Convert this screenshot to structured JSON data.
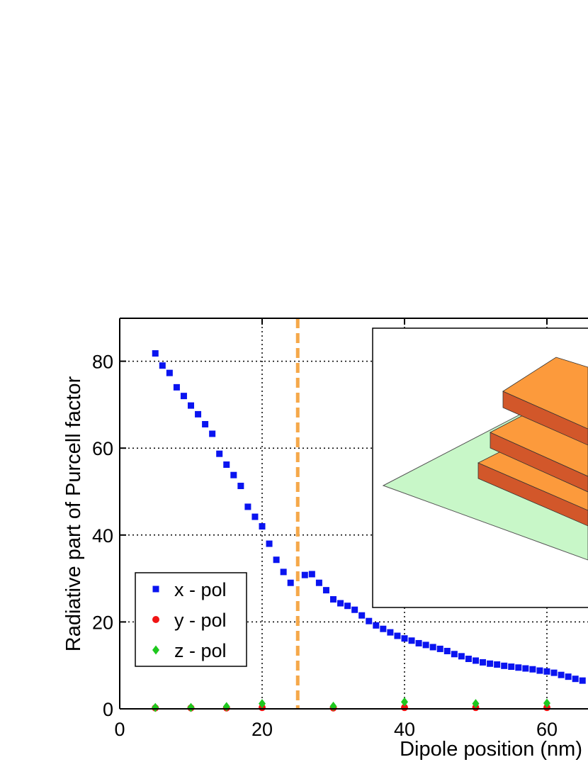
{
  "chart_data": {
    "type": "scatter",
    "xlabel": "Dipole position (nm)",
    "ylabel": "Radiative part of Purcell factor",
    "xlim": [
      0,
      65.5
    ],
    "ylim": [
      0,
      90
    ],
    "x_ticks": [
      0,
      20,
      40,
      60
    ],
    "y_ticks": [
      0,
      20,
      40,
      60,
      80
    ],
    "grid": true,
    "grid_style": "dotted",
    "legend_position": "bottom-left",
    "vertical_marker": {
      "x": 25,
      "color": "#f5a84a",
      "style": "dashed"
    },
    "series": [
      {
        "name": "x - pol",
        "color": "#0a14f0",
        "marker": "square",
        "x": [
          5,
          6,
          7,
          8,
          9,
          10,
          11,
          12,
          13,
          14,
          15,
          16,
          17,
          18,
          19,
          20,
          21,
          22,
          23,
          24,
          26,
          27,
          28,
          29,
          30,
          31,
          32,
          33,
          34,
          35,
          36,
          37,
          38,
          39,
          40,
          41,
          42,
          43,
          44,
          45,
          46,
          47,
          48,
          49,
          50,
          51,
          52,
          53,
          54,
          55,
          56,
          57,
          58,
          59,
          60,
          61,
          62,
          63,
          64,
          65
        ],
        "y": [
          81.8,
          79,
          77.3,
          74,
          72,
          69.8,
          67.8,
          65.5,
          63.3,
          58.7,
          56.2,
          53.8,
          51.3,
          46.5,
          44.2,
          42,
          38,
          34.3,
          31.5,
          29,
          30.8,
          31,
          29,
          27.3,
          25.2,
          24.3,
          23.7,
          22.8,
          21.5,
          20.2,
          19.2,
          18.4,
          17.6,
          16.8,
          16.2,
          15.7,
          15.1,
          14.7,
          14.2,
          13.8,
          13.3,
          12.6,
          12.1,
          11.5,
          11.1,
          10.7,
          10.4,
          10.2,
          9.9,
          9.7,
          9.5,
          9.3,
          9.1,
          8.8,
          8.6,
          8.3,
          7.8,
          7.4,
          6.9,
          6.5
        ]
      },
      {
        "name": "y - pol",
        "color": "#f01414",
        "marker": "circle",
        "x": [
          5,
          10,
          15,
          20,
          30,
          40,
          50,
          60
        ],
        "y": [
          0.2,
          0.2,
          0.2,
          0.3,
          0.2,
          0.3,
          0.3,
          0.3
        ]
      },
      {
        "name": "z - pol",
        "color": "#1ec81e",
        "marker": "diamond",
        "x": [
          5,
          10,
          15,
          20,
          30,
          40,
          50,
          60
        ],
        "y": [
          0.3,
          0.3,
          0.5,
          1.2,
          0.6,
          1.6,
          1.2,
          1.3
        ]
      }
    ],
    "inset": {
      "description": "3D schematic of stacked rectangular layers on a plane",
      "plane_color": "#c8f7c8",
      "block_top_color": "#fc9a3c",
      "block_side_color": "#d2572a"
    }
  }
}
